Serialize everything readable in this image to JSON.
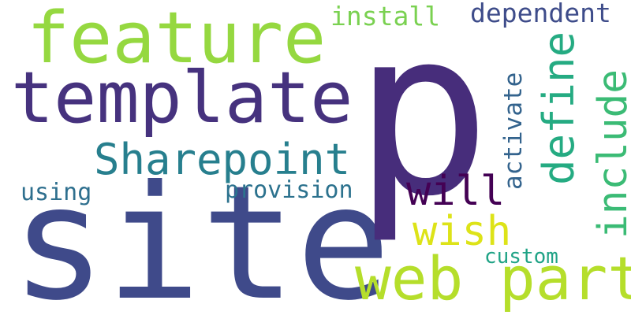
{
  "words": [
    {
      "text": "site",
      "color": "#3f4a8a"
    },
    {
      "text": "p",
      "color": "#472d7b"
    },
    {
      "text": "template",
      "color": "#46327e"
    },
    {
      "text": "feature",
      "color": "#95d840"
    },
    {
      "text": "web part",
      "color": "#b5de2b"
    },
    {
      "text": "Sharepoint",
      "color": "#277f8e"
    },
    {
      "text": "define",
      "color": "#25ab82"
    },
    {
      "text": "include",
      "color": "#3bbb75"
    },
    {
      "text": "will",
      "color": "#440154"
    },
    {
      "text": "wish",
      "color": "#dde318"
    },
    {
      "text": "dependent",
      "color": "#3e4c8a"
    },
    {
      "text": "install",
      "color": "#7ad151"
    },
    {
      "text": "activate",
      "color": "#33638d"
    },
    {
      "text": "provision",
      "color": "#2c728e"
    },
    {
      "text": "using",
      "color": "#2e6f8e"
    },
    {
      "text": "custom",
      "color": "#20a386"
    }
  ]
}
